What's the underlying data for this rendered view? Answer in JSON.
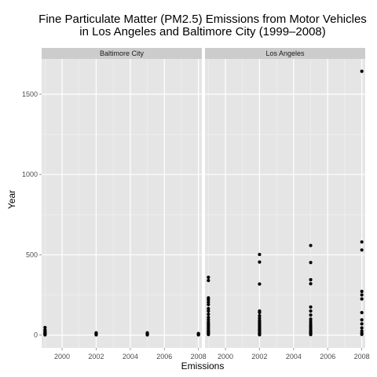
{
  "chart_data": {
    "type": "scatter",
    "title": "Fine Particulate Matter (PM2.5) Emissions from Motor Vehicles",
    "subtitle": "in Los Angeles and Baltimore City (1999–2008)",
    "xlabel": "Emissions",
    "ylabel": "Year",
    "xlim": [
      1998.8,
      2008.2
    ],
    "ylim": [
      -80,
      1720
    ],
    "x_ticks": [
      2000,
      2002,
      2004,
      2006,
      2008
    ],
    "y_ticks": [
      0,
      500,
      1000,
      1500
    ],
    "grid": true,
    "panels": [
      {
        "name": "Baltimore City",
        "points": [
          [
            1999,
            47
          ],
          [
            1999,
            32
          ],
          [
            1999,
            22
          ],
          [
            1999,
            15
          ],
          [
            1999,
            10
          ],
          [
            1999,
            6
          ],
          [
            1999,
            3
          ],
          [
            1999,
            1
          ],
          [
            2002,
            14
          ],
          [
            2002,
            9
          ],
          [
            2002,
            6
          ],
          [
            2002,
            3
          ],
          [
            2002,
            1
          ],
          [
            2005,
            14
          ],
          [
            2005,
            9
          ],
          [
            2005,
            5
          ],
          [
            2005,
            2
          ],
          [
            2005,
            1
          ],
          [
            2008,
            10
          ],
          [
            2008,
            6
          ],
          [
            2008,
            3
          ],
          [
            2008,
            1
          ]
        ]
      },
      {
        "name": "Los Angeles",
        "points": [
          [
            1999,
            360
          ],
          [
            1999,
            340
          ],
          [
            1999,
            232
          ],
          [
            1999,
            220
          ],
          [
            1999,
            205
          ],
          [
            1999,
            190
          ],
          [
            1999,
            165
          ],
          [
            1999,
            150
          ],
          [
            1999,
            130
          ],
          [
            1999,
            110
          ],
          [
            1999,
            95
          ],
          [
            1999,
            80
          ],
          [
            1999,
            70
          ],
          [
            1999,
            60
          ],
          [
            1999,
            50
          ],
          [
            1999,
            40
          ],
          [
            1999,
            30
          ],
          [
            1999,
            22
          ],
          [
            1999,
            15
          ],
          [
            1999,
            8
          ],
          [
            1999,
            3
          ],
          [
            2002,
            502
          ],
          [
            2002,
            455
          ],
          [
            2002,
            318
          ],
          [
            2002,
            150
          ],
          [
            2002,
            140
          ],
          [
            2002,
            120
          ],
          [
            2002,
            105
          ],
          [
            2002,
            92
          ],
          [
            2002,
            80
          ],
          [
            2002,
            70
          ],
          [
            2002,
            60
          ],
          [
            2002,
            50
          ],
          [
            2002,
            42
          ],
          [
            2002,
            35
          ],
          [
            2002,
            28
          ],
          [
            2002,
            20
          ],
          [
            2002,
            12
          ],
          [
            2002,
            6
          ],
          [
            2002,
            2
          ],
          [
            2005,
            558
          ],
          [
            2005,
            452
          ],
          [
            2005,
            345
          ],
          [
            2005,
            320
          ],
          [
            2005,
            175
          ],
          [
            2005,
            150
          ],
          [
            2005,
            125
          ],
          [
            2005,
            100
          ],
          [
            2005,
            85
          ],
          [
            2005,
            72
          ],
          [
            2005,
            60
          ],
          [
            2005,
            50
          ],
          [
            2005,
            40
          ],
          [
            2005,
            30
          ],
          [
            2005,
            22
          ],
          [
            2005,
            15
          ],
          [
            2005,
            8
          ],
          [
            2005,
            3
          ],
          [
            2008,
            1643
          ],
          [
            2008,
            580
          ],
          [
            2008,
            530
          ],
          [
            2008,
            272
          ],
          [
            2008,
            250
          ],
          [
            2008,
            225
          ],
          [
            2008,
            140
          ],
          [
            2008,
            95
          ],
          [
            2008,
            70
          ],
          [
            2008,
            45
          ],
          [
            2008,
            25
          ],
          [
            2008,
            12
          ],
          [
            2008,
            4
          ]
        ]
      }
    ]
  }
}
